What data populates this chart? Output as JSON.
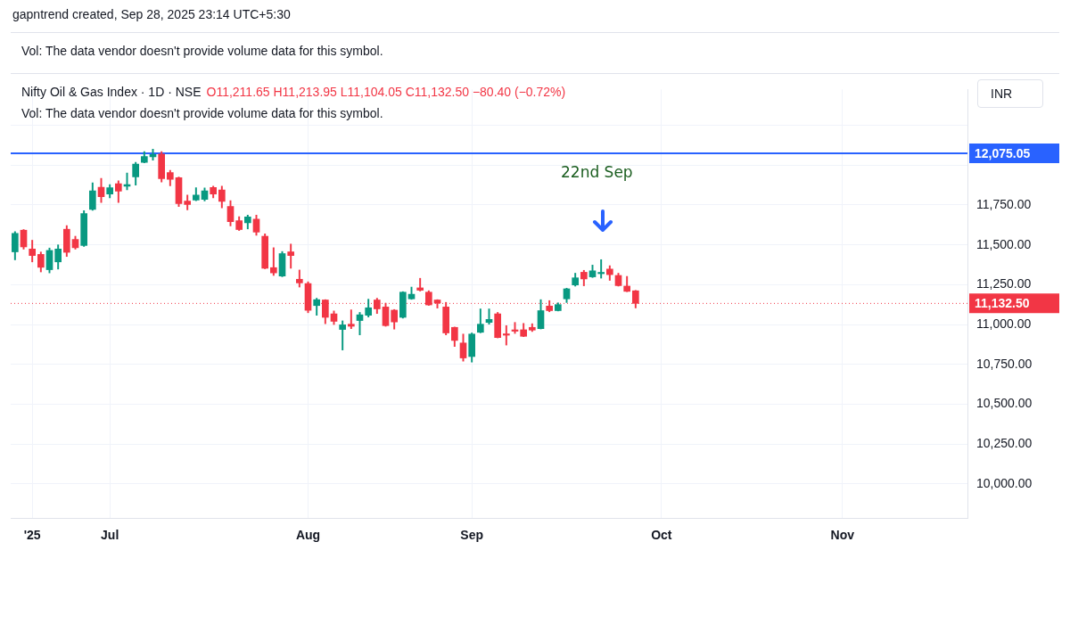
{
  "chart_data": {
    "type": "candlestick",
    "title": "Nifty Oil & Gas Index · 1D · NSE",
    "subtitle": "O11,211.65 H11,213.95 L11,104.05 C11,132.50 −80.40 (−0.72%)",
    "annotations": [
      "gapntrend created, Sep 28, 2025 23:14 UTC+5:30",
      "Vol: The data vendor doesn't provide volume data for this symbol.",
      "Vol: The data vendor doesn't provide volume data for this symbol.",
      "INR",
      "22nd Sep"
    ],
    "categories": [
      null,
      null,
      "'25",
      null,
      null,
      null,
      null,
      null,
      null,
      null,
      null,
      "Jul",
      null,
      null,
      null,
      null,
      null,
      null,
      null,
      null,
      null,
      null,
      null,
      null,
      null,
      null,
      null,
      null,
      null,
      null,
      null,
      null,
      null,
      null,
      "Aug",
      null,
      null,
      null,
      null,
      null,
      null,
      null,
      null,
      null,
      null,
      null,
      null,
      null,
      null,
      null,
      null,
      null,
      null,
      "Sep",
      null,
      null,
      null,
      null,
      null,
      null,
      null,
      null,
      null,
      null,
      null,
      null,
      null,
      null,
      null,
      null,
      null,
      null,
      null,
      null,
      null,
      "Oct",
      null,
      null,
      null,
      null,
      null,
      null,
      null,
      null,
      null,
      null,
      null,
      null,
      null,
      null,
      null,
      null,
      null,
      null,
      null,
      null,
      "Nov",
      null,
      null,
      null,
      null,
      null,
      null,
      null,
      null,
      null,
      null,
      null,
      null,
      null,
      null
    ],
    "ohlc": [
      [
        11456,
        11583,
        11406,
        11572
      ],
      [
        11592,
        11596,
        11473,
        11487
      ],
      [
        11474,
        11529,
        11393,
        11433
      ],
      [
        11440,
        11455,
        11330,
        11359
      ],
      [
        11344,
        11480,
        11324,
        11465
      ],
      [
        11393,
        11500,
        11348,
        11474
      ],
      [
        11598,
        11621,
        11427,
        11453
      ],
      [
        11534,
        11554,
        11473,
        11482
      ],
      [
        11496,
        11715,
        11490,
        11697
      ],
      [
        11723,
        11889,
        11717,
        11839
      ],
      [
        11862,
        11918,
        11766,
        11802
      ],
      [
        11819,
        11878,
        11795,
        11859
      ],
      [
        11884,
        11902,
        11766,
        11837
      ],
      [
        11868,
        11951,
        11846,
        11878
      ],
      [
        11926,
        12018,
        11875,
        12007
      ],
      [
        12018,
        12085,
        12015,
        12054
      ],
      [
        12052,
        12100,
        12031,
        12067
      ],
      [
        12070,
        12085,
        11895,
        11916
      ],
      [
        11953,
        11967,
        11871,
        11911
      ],
      [
        11922,
        11926,
        11741,
        11759
      ],
      [
        11775,
        11813,
        11719,
        11753
      ],
      [
        11781,
        11859,
        11777,
        11813
      ],
      [
        11786,
        11857,
        11775,
        11839
      ],
      [
        11860,
        11869,
        11795,
        11819
      ],
      [
        11844,
        11868,
        11732,
        11773
      ],
      [
        11741,
        11777,
        11619,
        11645
      ],
      [
        11652,
        11677,
        11590,
        11596
      ],
      [
        11639,
        11686,
        11600,
        11676
      ],
      [
        11661,
        11686,
        11560,
        11580
      ],
      [
        11554,
        11569,
        11350,
        11353
      ],
      [
        11357,
        11482,
        11308,
        11324
      ],
      [
        11304,
        11458,
        11300,
        11445
      ],
      [
        11456,
        11505,
        11353,
        11433
      ],
      [
        11284,
        11342,
        11235,
        11261
      ],
      [
        11257,
        11268,
        11074,
        11089
      ],
      [
        11119,
        11165,
        11058,
        11156
      ],
      [
        11154,
        11156,
        11005,
        11045
      ],
      [
        11067,
        11085,
        11000,
        11020
      ],
      [
        10969,
        11023,
        10840,
        10998
      ],
      [
        11002,
        11092,
        10974,
        10989
      ],
      [
        11025,
        11076,
        10935,
        11061
      ],
      [
        11058,
        11159,
        11047,
        11105
      ],
      [
        11154,
        11165,
        11069,
        11098
      ],
      [
        11110,
        11134,
        10989,
        10993
      ],
      [
        11090,
        11094,
        10971,
        11016
      ],
      [
        11045,
        11206,
        11040,
        11203
      ],
      [
        11161,
        11235,
        11158,
        11190
      ],
      [
        11230,
        11290,
        11210,
        11215
      ],
      [
        11203,
        11212,
        11120,
        11123
      ],
      [
        11154,
        11156,
        11103,
        11134
      ],
      [
        11110,
        11139,
        10935,
        10947
      ],
      [
        10982,
        10984,
        10862,
        10900
      ],
      [
        10884,
        10940,
        10770,
        10790
      ],
      [
        10799,
        10947,
        10764,
        10940
      ],
      [
        10951,
        11098,
        10948,
        11002
      ],
      [
        11013,
        11098,
        11002,
        11032
      ],
      [
        11067,
        11076,
        10916,
        10918
      ],
      [
        10940,
        10993,
        10871,
        10933
      ],
      [
        10965,
        11013,
        10944,
        10958
      ],
      [
        10967,
        11007,
        10924,
        10926
      ],
      [
        10982,
        11005,
        10956,
        10965
      ],
      [
        10974,
        11156,
        10972,
        11087
      ],
      [
        11116,
        11150,
        11080,
        11087
      ],
      [
        11087,
        11136,
        11085,
        11125
      ],
      [
        11161,
        11228,
        11138,
        11224
      ],
      [
        11248,
        11322,
        11241,
        11293
      ],
      [
        11328,
        11340,
        11243,
        11286
      ],
      [
        11299,
        11373,
        11295,
        11337
      ],
      [
        11319,
        11407,
        11291,
        11326
      ],
      [
        11348,
        11369,
        11277,
        11313
      ],
      [
        11308,
        11322,
        11241,
        11244
      ],
      [
        11241,
        11302,
        11206,
        11208
      ],
      [
        11211.65,
        11213.95,
        11104.05,
        11132.5
      ],
      null,
      null,
      null,
      null,
      null,
      null,
      null,
      null,
      null,
      null,
      null,
      null,
      null,
      null,
      null,
      null,
      null,
      null,
      null,
      null,
      null,
      null,
      null,
      null,
      null,
      null,
      null,
      null,
      null,
      null,
      null,
      null,
      null,
      null,
      null,
      null,
      null,
      null
    ],
    "colors": [
      "#089981",
      "#f23645",
      "#f23645",
      "#f23645",
      "#089981",
      "#089981",
      "#f23645",
      "#f23645",
      "#089981",
      "#089981",
      "#f23645",
      "#089981",
      "#f23645",
      "#089981",
      "#089981",
      "#089981",
      "#089981",
      "#f23645",
      "#f23645",
      "#f23645",
      "#f23645",
      "#089981",
      "#089981",
      "#f23645",
      "#f23645",
      "#f23645",
      "#f23645",
      "#089981",
      "#f23645",
      "#f23645",
      "#f23645",
      "#089981",
      "#f23645",
      "#f23645",
      "#f23645",
      "#089981",
      "#f23645",
      "#f23645",
      "#089981",
      "#f23645",
      "#089981",
      "#089981",
      "#f23645",
      "#f23645",
      "#f23645",
      "#089981",
      "#089981",
      "#f23645",
      "#f23645",
      "#f23645",
      "#f23645",
      "#f23645",
      "#f23645",
      "#089981",
      "#089981",
      "#089981",
      "#f23645",
      "#f23645",
      "#f23645",
      "#f23645",
      "#f23645",
      "#089981",
      "#f23645",
      "#089981",
      "#089981",
      "#089981",
      "#f23645",
      "#089981",
      "#089981",
      "#f23645",
      "#f23645",
      "#f23645",
      "#f23645",
      null,
      null,
      null,
      null,
      null,
      null,
      null,
      null,
      null,
      null,
      null,
      null,
      null,
      null,
      null,
      null,
      null,
      null,
      null,
      null,
      null,
      null,
      null,
      null,
      null,
      null,
      null,
      null,
      null,
      null,
      null,
      null,
      null,
      null,
      null,
      null,
      null,
      null
    ],
    "ylim": [
      9785,
      12475
    ],
    "yticks": [
      {
        "value": 10000,
        "label": "10,000.00"
      },
      {
        "value": 10250,
        "label": "10,250.00"
      },
      {
        "value": 10500,
        "label": "10,500.00"
      },
      {
        "value": 10750,
        "label": "10,750.00"
      },
      {
        "value": 11000,
        "label": "11,000.00"
      },
      {
        "value": 11250,
        "label": "11,250.00"
      },
      {
        "value": 11500,
        "label": "11,500.00"
      },
      {
        "value": 11750,
        "label": "11,750.00"
      },
      {
        "value": 12000,
        "label": null
      },
      {
        "value": 12250,
        "label": null
      }
    ],
    "ref_lines": [
      {
        "axis": "y",
        "value": 12075.05,
        "label": "12,075.05",
        "color": "#2962ff",
        "line_style": "solid"
      },
      {
        "axis": "y",
        "value": 11132.5,
        "label": "11,132.50",
        "color": "#f23645",
        "line_style": "dotted"
      }
    ],
    "grid": true,
    "legend": false
  }
}
